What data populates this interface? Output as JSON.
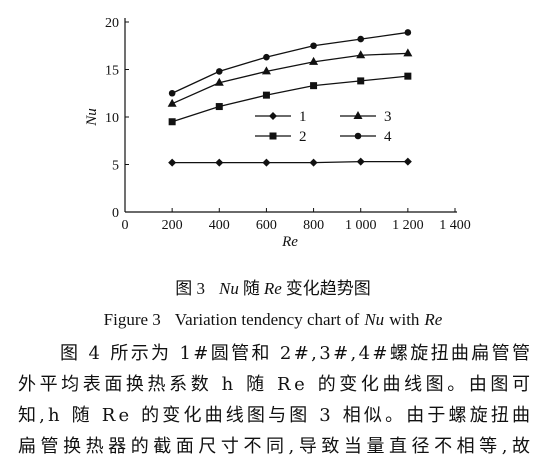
{
  "chart_data": {
    "type": "line",
    "x": [
      200,
      400,
      600,
      800,
      1000,
      1200
    ],
    "xlim": [
      0,
      1400
    ],
    "xticks": [
      0,
      200,
      400,
      600,
      800,
      {
        "value": 1000,
        "label": "1 000"
      },
      {
        "value": 1200,
        "label": "1 200"
      },
      {
        "value": 1400,
        "label": "1 400"
      }
    ],
    "ylim": [
      0,
      20
    ],
    "yticks": [
      0,
      5,
      10,
      15,
      20
    ],
    "x_label": "Re",
    "y_label": "Nu",
    "series": [
      {
        "name": "1",
        "color": "#111111",
        "marker": "diamond",
        "values": [
          5.2,
          5.2,
          5.2,
          5.2,
          5.3,
          5.3
        ]
      },
      {
        "name": "2",
        "color": "#111111",
        "marker": "square",
        "values": [
          9.5,
          11.1,
          12.3,
          13.3,
          13.8,
          14.3
        ]
      },
      {
        "name": "3",
        "color": "#111111",
        "marker": "triangle",
        "values": [
          11.4,
          13.6,
          14.8,
          15.8,
          16.5,
          16.7
        ]
      },
      {
        "name": "4",
        "color": "#111111",
        "marker": "circle",
        "values": [
          12.5,
          14.8,
          16.3,
          17.5,
          18.2,
          18.9
        ]
      }
    ]
  },
  "caption_cn": [
    "图 3",
    "Nu",
    "随",
    "Re",
    "变化趋势图"
  ],
  "caption_en": [
    "Figure 3",
    "Variation tendency chart of",
    "Nu",
    "with",
    "Re"
  ],
  "paragraph": [
    "图 4 所示为 1#圆管和 2#,3#,4#螺旋扭曲扁管管",
    "外平均表面换热系数 h 随 Re 的变化曲线图。由图可",
    "知,h 随 Re 的变化曲线图与图 3 相似。由于螺旋扭曲",
    "扁管换热器的截面尺寸不同,导致当量直径不相等,故"
  ]
}
